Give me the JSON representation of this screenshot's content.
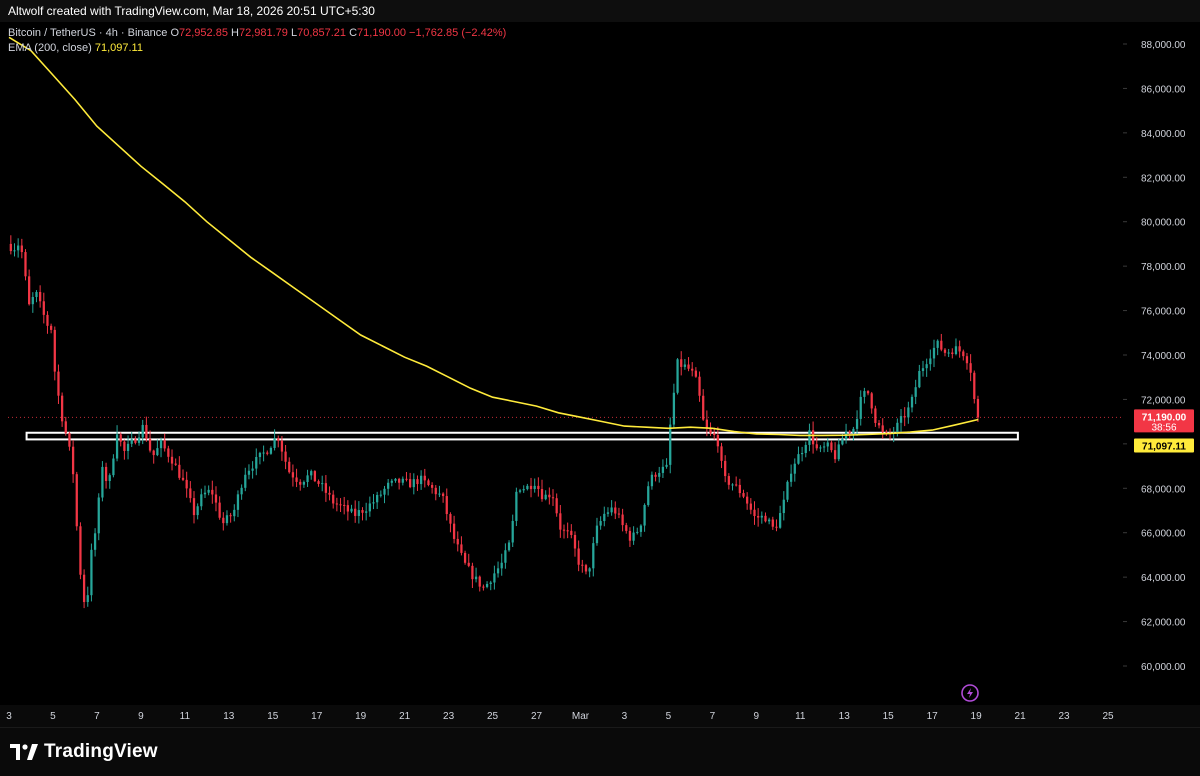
{
  "header": {
    "credit": "Altwolf created with TradingView.com, Mar 18, 2026 20:51 UTC+5:30"
  },
  "legend": {
    "symbol": "Bitcoin / TetherUS · 4h · Binance",
    "open_label": "O",
    "open": "72,952.85",
    "high_label": "H",
    "high": "72,981.79",
    "low_label": "L",
    "low": "70,857.21",
    "close_label": "C",
    "close": "71,190.00",
    "change": "−1,762.85 (−2.42%)",
    "ema_label": "EMA (200, close)",
    "ema_value": "71,097.11"
  },
  "footer": {
    "brand": "TradingView"
  },
  "colors": {
    "up": "#26a69a",
    "down": "#f23645",
    "ema": "#ffeb3b",
    "background": "#000000",
    "zone": "#ffffff"
  },
  "icons": [
    "tradingview-logo-icon",
    "lightning-icon"
  ],
  "chart_data": {
    "type": "candlestick",
    "title": "Bitcoin / TetherUS · 4h · Binance",
    "interval": "4h",
    "ylim": [
      59000,
      89000
    ],
    "y_ticks": [
      "88,000.00",
      "86,000.00",
      "84,000.00",
      "82,000.00",
      "80,000.00",
      "78,000.00",
      "76,000.00",
      "74,000.00",
      "72,000.00",
      "70,000.00",
      "68,000.00",
      "66,000.00",
      "64,000.00",
      "62,000.00",
      "60,000.00"
    ],
    "y_tick_values": [
      88000,
      86000,
      84000,
      82000,
      80000,
      78000,
      76000,
      74000,
      72000,
      70000,
      68000,
      66000,
      64000,
      62000,
      60000
    ],
    "x_ticks": [
      "3",
      "5",
      "7",
      "9",
      "11",
      "13",
      "15",
      "17",
      "19",
      "21",
      "23",
      "25",
      "27",
      "Mar",
      "3",
      "5",
      "7",
      "9",
      "11",
      "13",
      "15",
      "17",
      "19",
      "21",
      "23",
      "25"
    ],
    "x_tick_days": [
      0,
      2,
      4,
      6,
      8,
      10,
      12,
      14,
      16,
      18,
      20,
      22,
      24,
      26,
      28,
      30,
      32,
      34,
      36,
      38,
      40,
      42,
      44,
      46,
      48,
      50
    ],
    "x_day_range": [
      0,
      50.8
    ],
    "last_price": 71190,
    "last_price_label": "71,190.00",
    "countdown": "38:56",
    "ema_last_label": "71,097.11",
    "price_path": [
      [
        0.0,
        79000
      ],
      [
        0.3,
        78800
      ],
      [
        0.6,
        79100
      ],
      [
        1.0,
        76200
      ],
      [
        1.3,
        76800
      ],
      [
        1.8,
        75400
      ],
      [
        2.0,
        75200
      ],
      [
        2.2,
        72900
      ],
      [
        2.5,
        71200
      ],
      [
        2.8,
        69900
      ],
      [
        3.0,
        68700
      ],
      [
        3.2,
        65800
      ],
      [
        3.4,
        63400
      ],
      [
        3.6,
        62500
      ],
      [
        3.8,
        64900
      ],
      [
        4.1,
        66500
      ],
      [
        4.3,
        69200
      ],
      [
        4.6,
        68000
      ],
      [
        5.0,
        70600
      ],
      [
        5.3,
        69600
      ],
      [
        5.8,
        70200
      ],
      [
        6.2,
        70800
      ],
      [
        6.6,
        69400
      ],
      [
        7.0,
        70000
      ],
      [
        7.5,
        69300
      ],
      [
        8.0,
        68300
      ],
      [
        8.5,
        66900
      ],
      [
        8.9,
        67700
      ],
      [
        9.3,
        67900
      ],
      [
        9.8,
        66400
      ],
      [
        10.3,
        66900
      ],
      [
        10.8,
        68700
      ],
      [
        11.3,
        69200
      ],
      [
        11.8,
        69700
      ],
      [
        12.3,
        70400
      ],
      [
        12.8,
        68800
      ],
      [
        13.3,
        68300
      ],
      [
        13.8,
        68600
      ],
      [
        14.3,
        68100
      ],
      [
        14.8,
        67400
      ],
      [
        15.3,
        67100
      ],
      [
        15.8,
        66800
      ],
      [
        16.3,
        67100
      ],
      [
        16.8,
        67500
      ],
      [
        17.3,
        68100
      ],
      [
        17.8,
        68300
      ],
      [
        18.3,
        68200
      ],
      [
        18.8,
        68400
      ],
      [
        19.3,
        68000
      ],
      [
        19.8,
        67600
      ],
      [
        20.3,
        65800
      ],
      [
        20.8,
        64600
      ],
      [
        21.3,
        63900
      ],
      [
        21.7,
        63500
      ],
      [
        22.1,
        64100
      ],
      [
        22.5,
        64600
      ],
      [
        22.9,
        65600
      ],
      [
        23.2,
        68100
      ],
      [
        23.6,
        68000
      ],
      [
        24.0,
        68300
      ],
      [
        24.4,
        67600
      ],
      [
        24.8,
        67800
      ],
      [
        25.2,
        66100
      ],
      [
        25.6,
        65900
      ],
      [
        26.0,
        64700
      ],
      [
        26.4,
        64000
      ],
      [
        26.8,
        66100
      ],
      [
        27.2,
        66900
      ],
      [
        27.6,
        67100
      ],
      [
        28.0,
        66300
      ],
      [
        28.4,
        65700
      ],
      [
        28.8,
        66300
      ],
      [
        29.2,
        68300
      ],
      [
        29.6,
        68800
      ],
      [
        30.0,
        68900
      ],
      [
        30.2,
        71200
      ],
      [
        30.5,
        73600
      ],
      [
        30.8,
        73500
      ],
      [
        31.1,
        73300
      ],
      [
        31.4,
        72700
      ],
      [
        31.7,
        70800
      ],
      [
        32.0,
        70400
      ],
      [
        32.3,
        70300
      ],
      [
        32.6,
        68400
      ],
      [
        33.0,
        68200
      ],
      [
        33.5,
        67700
      ],
      [
        34.0,
        66700
      ],
      [
        34.5,
        66700
      ],
      [
        34.9,
        66100
      ],
      [
        35.3,
        67200
      ],
      [
        35.7,
        69000
      ],
      [
        36.1,
        69600
      ],
      [
        36.5,
        70500
      ],
      [
        36.9,
        69600
      ],
      [
        37.3,
        69900
      ],
      [
        37.7,
        69400
      ],
      [
        38.1,
        70500
      ],
      [
        38.5,
        70700
      ],
      [
        38.9,
        72200
      ],
      [
        39.2,
        72300
      ],
      [
        39.5,
        71100
      ],
      [
        39.9,
        70300
      ],
      [
        40.3,
        70500
      ],
      [
        40.7,
        71100
      ],
      [
        41.1,
        71700
      ],
      [
        41.5,
        73200
      ],
      [
        41.9,
        73900
      ],
      [
        42.3,
        74500
      ],
      [
        42.7,
        74100
      ],
      [
        43.1,
        74300
      ],
      [
        43.5,
        74100
      ],
      [
        43.8,
        73600
      ],
      [
        44.1,
        71190
      ]
    ],
    "ema_path": [
      [
        0.0,
        88300
      ],
      [
        1.0,
        87700
      ],
      [
        2.0,
        86600
      ],
      [
        3.0,
        85500
      ],
      [
        4.0,
        84300
      ],
      [
        5.0,
        83400
      ],
      [
        6.0,
        82500
      ],
      [
        7.0,
        81700
      ],
      [
        8.0,
        80900
      ],
      [
        9.0,
        80000
      ],
      [
        10.0,
        79200
      ],
      [
        11.0,
        78400
      ],
      [
        12.0,
        77700
      ],
      [
        13.0,
        77000
      ],
      [
        14.0,
        76300
      ],
      [
        15.0,
        75600
      ],
      [
        16.0,
        74900
      ],
      [
        17.0,
        74400
      ],
      [
        18.0,
        73900
      ],
      [
        19.0,
        73500
      ],
      [
        20.0,
        73000
      ],
      [
        21.0,
        72500
      ],
      [
        22.0,
        72100
      ],
      [
        23.0,
        71900
      ],
      [
        24.0,
        71700
      ],
      [
        25.0,
        71400
      ],
      [
        26.0,
        71200
      ],
      [
        27.0,
        71000
      ],
      [
        28.0,
        70800
      ],
      [
        29.0,
        70750
      ],
      [
        30.0,
        70700
      ],
      [
        31.0,
        70750
      ],
      [
        32.0,
        70700
      ],
      [
        33.0,
        70550
      ],
      [
        34.0,
        70450
      ],
      [
        35.0,
        70420
      ],
      [
        36.0,
        70380
      ],
      [
        37.0,
        70380
      ],
      [
        38.0,
        70390
      ],
      [
        39.0,
        70420
      ],
      [
        40.0,
        70460
      ],
      [
        41.0,
        70530
      ],
      [
        42.0,
        70620
      ],
      [
        43.0,
        70840
      ],
      [
        44.1,
        71097
      ]
    ],
    "zone": {
      "y_top": 70500,
      "y_bottom": 70200,
      "x_start": 0.8,
      "x_end": 45.9
    },
    "dotted_line_value": 71190
  }
}
